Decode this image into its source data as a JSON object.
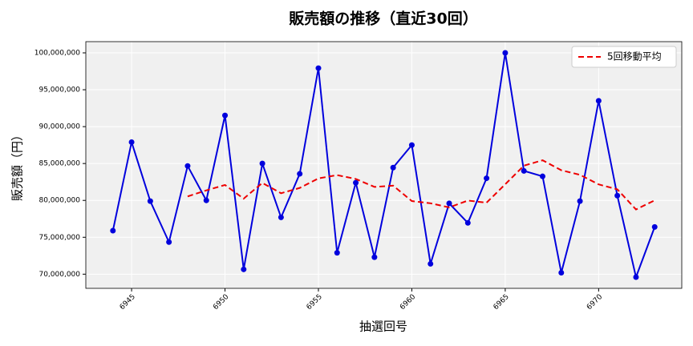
{
  "chart_data": {
    "type": "line",
    "title": "販売額の推移（直近30回）",
    "x_label": "抽選回号",
    "y_label": "販売額（円）",
    "x": [
      6944,
      6945,
      6946,
      6947,
      6948,
      6949,
      6950,
      6951,
      6952,
      6953,
      6954,
      6955,
      6956,
      6957,
      6958,
      6959,
      6960,
      6961,
      6962,
      6963,
      6964,
      6965,
      6966,
      6967,
      6968,
      6969,
      6970,
      6971,
      6972,
      6973
    ],
    "series": [
      {
        "color": "#0000dd",
        "linestyle": "solid",
        "marker": true,
        "values": [
          75900000,
          87900000,
          79900000,
          74350000,
          84670000,
          80000000,
          91520000,
          70650000,
          85000000,
          77700000,
          83600000,
          97930000,
          72900000,
          82400000,
          72300000,
          84450000,
          87500000,
          71400000,
          79600000,
          76950000,
          83000000,
          100000000,
          84000000,
          83260000,
          70200000,
          79900000,
          93500000,
          80650000,
          69600000,
          76400000
        ]
      },
      {
        "name": "5回移動平均",
        "color": "#ee0000",
        "linestyle": "dashed",
        "marker": false,
        "values": [
          null,
          null,
          null,
          null,
          80540000,
          81360000,
          82090000,
          80240000,
          82370000,
          80970000,
          81690000,
          82980000,
          83430000,
          82910000,
          81830000,
          82000000,
          79910000,
          79610000,
          79050000,
          79980000,
          79690000,
          82190000,
          84710000,
          85440000,
          84090000,
          83470000,
          82170000,
          81500000,
          78770000,
          80010000
        ]
      }
    ],
    "xlim": [
      6942.55,
      6974.45
    ],
    "xticks": [
      6945,
      6950,
      6955,
      6960,
      6965,
      6970
    ],
    "ylim": [
      68080000,
      101520000
    ],
    "yticks": [
      {
        "value": 70000000,
        "label": "70,000,000"
      },
      {
        "value": 75000000,
        "label": "75,000,000"
      },
      {
        "value": 80000000,
        "label": "80,000,000"
      },
      {
        "value": 85000000,
        "label": "85,000,000"
      },
      {
        "value": 90000000,
        "label": "90,000,000"
      },
      {
        "value": 95000000,
        "label": "95,000,000"
      },
      {
        "value": 100000000,
        "label": "100,000,000"
      }
    ],
    "grid": true,
    "legend": "upper right"
  }
}
